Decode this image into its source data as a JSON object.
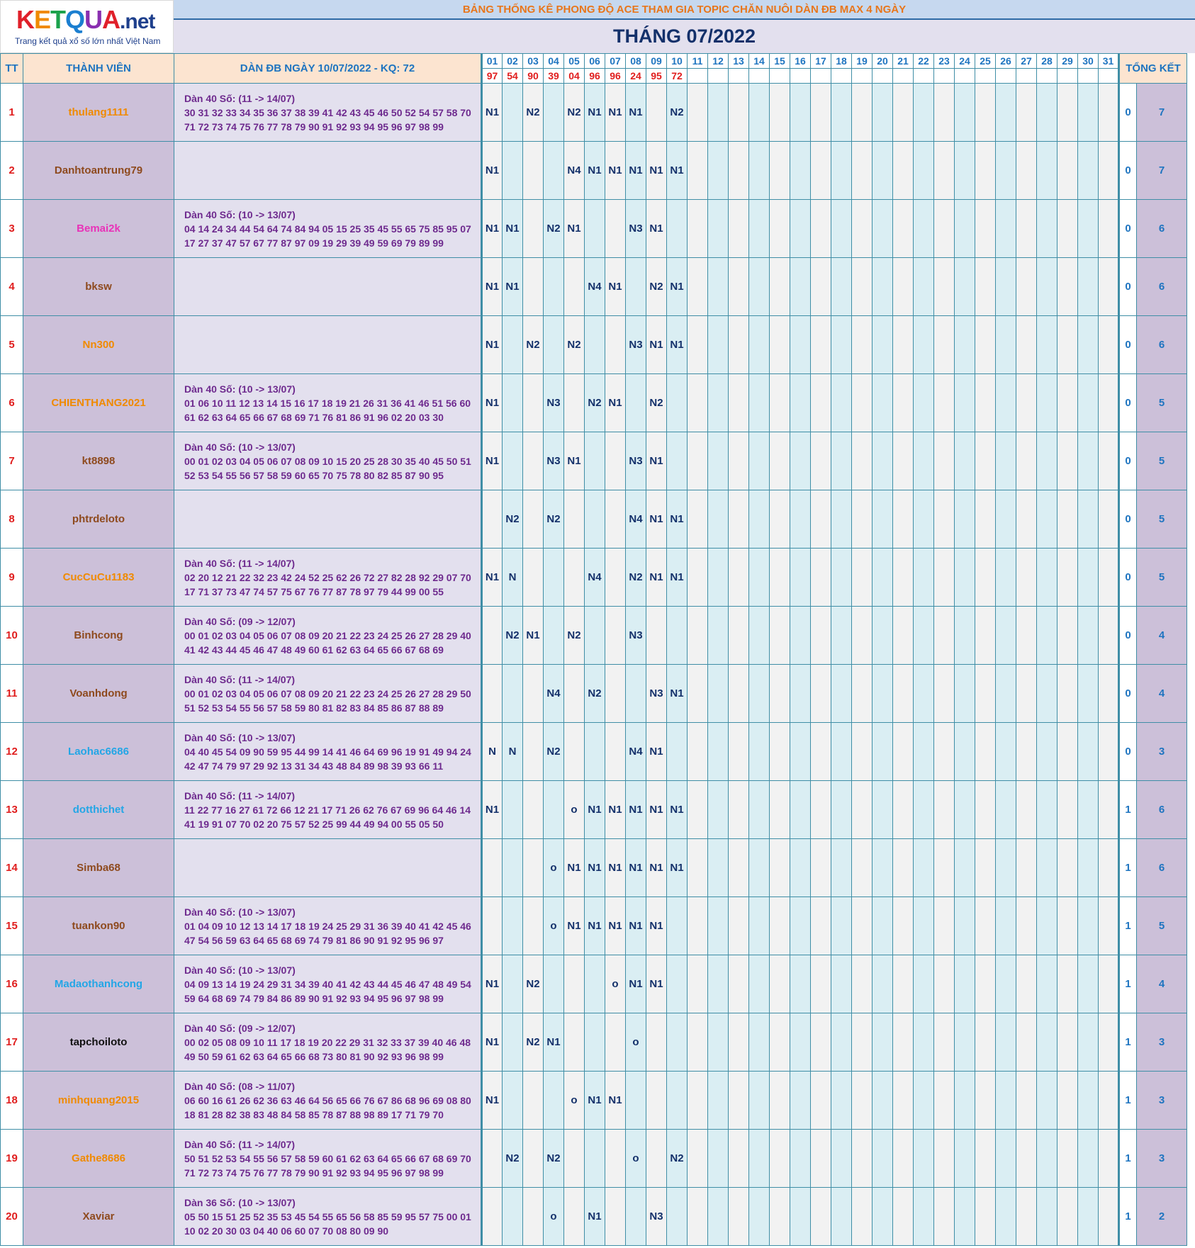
{
  "logo": {
    "brand_parts": [
      "K",
      "E",
      "T",
      "Q",
      "U",
      "A"
    ],
    "domain": ".net",
    "tagline": "Trang kết quả xổ số lớn nhất Việt Nam"
  },
  "banner": "BẢNG THỐNG KÊ PHONG ĐỘ ACE THAM GIA TOPIC CHĂN NUÔI DÀN ĐB MAX 4 NGÀY",
  "month_title": "THÁNG 07/2022",
  "headers": {
    "tt": "TT",
    "member": "THÀNH VIÊN",
    "dan": "DÀN ĐB NGÀY 10/07/2022 - KQ: 72",
    "total": "TỔNG KẾT"
  },
  "days": [
    "01",
    "02",
    "03",
    "04",
    "05",
    "06",
    "07",
    "08",
    "09",
    "10",
    "11",
    "12",
    "13",
    "14",
    "15",
    "16",
    "17",
    "18",
    "19",
    "20",
    "21",
    "22",
    "23",
    "24",
    "25",
    "26",
    "27",
    "28",
    "29",
    "30",
    "31"
  ],
  "results": [
    "97",
    "54",
    "90",
    "39",
    "04",
    "96",
    "96",
    "24",
    "95",
    "72",
    "",
    "",
    "",
    "",
    "",
    "",
    "",
    "",
    "",
    "",
    "",
    "",
    "",
    "",
    "",
    "",
    "",
    "",
    "",
    "",
    ""
  ],
  "colors": {
    "red": "#e01d1d",
    "blue": "#1e74c0",
    "navy": "#13306a",
    "purple": "#6e2a8e",
    "orange": "#f08a00",
    "brown": "#8e4a1e",
    "pink": "#e832b8",
    "cyan": "#23a6e6",
    "black": "#111111"
  },
  "rows": [
    {
      "tt": "1",
      "name": "thulang1111",
      "color": "#f08a00",
      "dan": [
        "Dàn 40 Số: (11 -> 14/07)",
        "30 31 32 33 34 35 36 37 38 39 41 42 43 45 46 50 52 54 57 58 70",
        "71 72 73 74 75 76 77 78 79 90 91 92 93 94 95 96 97 98 99"
      ],
      "marks": [
        "N1",
        "",
        "N2",
        "",
        "N2",
        "N1",
        "N1",
        "N1",
        "",
        "N2"
      ],
      "zero": "0",
      "total": "7"
    },
    {
      "tt": "2",
      "name": "Danhtoantrung79",
      "color": "#8e4a1e",
      "dan": [
        "",
        "",
        ""
      ],
      "marks": [
        "N1",
        "",
        "",
        "",
        "N4",
        "N1",
        "N1",
        "N1",
        "N1",
        "N1"
      ],
      "zero": "0",
      "total": "7"
    },
    {
      "tt": "3",
      "name": "Bemai2k",
      "color": "#e832b8",
      "dan": [
        "Dàn 40 Số: (10 -> 13/07)",
        "04 14 24 34 44 54 64 74 84 94 05 15 25 35 45 55 65 75 85 95 07",
        "17 27 37 47 57 67 77 87 97 09 19 29 39 49 59 69 79 89 99"
      ],
      "marks": [
        "N1",
        "N1",
        "",
        "N2",
        "N1",
        "",
        "",
        "N3",
        "N1",
        ""
      ],
      "zero": "0",
      "total": "6"
    },
    {
      "tt": "4",
      "name": "bksw",
      "color": "#8e4a1e",
      "dan": [
        "",
        "",
        ""
      ],
      "marks": [
        "N1",
        "N1",
        "",
        "",
        "",
        "N4",
        "N1",
        "",
        "N2",
        "N1"
      ],
      "zero": "0",
      "total": "6"
    },
    {
      "tt": "5",
      "name": "Nn300",
      "color": "#f08a00",
      "dan": [
        "",
        "",
        ""
      ],
      "marks": [
        "N1",
        "",
        "N2",
        "",
        "N2",
        "",
        "",
        "N3",
        "N1",
        "N1"
      ],
      "zero": "0",
      "total": "6"
    },
    {
      "tt": "6",
      "name": "CHIENTHANG2021",
      "color": "#f08a00",
      "dan": [
        "Dàn 40 Số: (10 -> 13/07)",
        "01 06 10 11 12 13 14 15 16 17 18 19 21 26 31 36 41 46 51 56 60",
        "61 62 63 64 65 66 67 68 69 71 76 81 86 91 96 02 20 03 30"
      ],
      "marks": [
        "N1",
        "",
        "",
        "N3",
        "",
        "N2",
        "N1",
        "",
        "N2",
        ""
      ],
      "zero": "0",
      "total": "5"
    },
    {
      "tt": "7",
      "name": "kt8898",
      "color": "#8e4a1e",
      "dan": [
        "Dàn 40 Số: (10 -> 13/07)",
        "00 01 02 03 04 05 06 07 08 09 10 15 20 25 28 30 35 40 45 50 51",
        "52 53 54 55 56 57 58 59 60 65 70 75 78 80 82 85 87 90 95"
      ],
      "marks": [
        "N1",
        "",
        "",
        "N3",
        "N1",
        "",
        "",
        "N3",
        "N1",
        ""
      ],
      "zero": "0",
      "total": "5"
    },
    {
      "tt": "8",
      "name": "phtrdeloto",
      "color": "#8e4a1e",
      "dan": [
        "",
        "",
        ""
      ],
      "marks": [
        "",
        "N2",
        "",
        "N2",
        "",
        "",
        "",
        "N4",
        "N1",
        "N1"
      ],
      "zero": "0",
      "total": "5"
    },
    {
      "tt": "9",
      "name": "CucCuCu1183",
      "color": "#f08a00",
      "dan": [
        "Dàn 40 Số: (11 -> 14/07)",
        "02 20 12 21 22 32 23 42 24 52 25 62 26 72 27 82 28 92 29 07 70",
        "17 71 37 73 47 74 57 75 67 76 77 87 78 97 79 44 99 00 55"
      ],
      "marks": [
        "N1",
        "N",
        "",
        "",
        "",
        "N4",
        "",
        "N2",
        "N1",
        "N1"
      ],
      "zero": "0",
      "total": "5"
    },
    {
      "tt": "10",
      "name": "Binhcong",
      "color": "#8e4a1e",
      "dan": [
        "Dàn 40 Số: (09 -> 12/07)",
        "00 01 02 03 04 05 06 07 08 09 20 21 22 23 24 25 26 27 28 29 40",
        "41 42 43 44 45 46 47 48 49 60 61 62 63 64 65 66 67 68 69"
      ],
      "marks": [
        "",
        "N2",
        "N1",
        "",
        "N2",
        "",
        "",
        "N3",
        "",
        ""
      ],
      "zero": "0",
      "total": "4"
    },
    {
      "tt": "11",
      "name": "Voanhdong",
      "color": "#8e4a1e",
      "dan": [
        "Dàn 40 Số: (11 -> 14/07)",
        "00 01 02 03 04 05 06 07 08 09 20 21 22 23 24 25 26 27 28 29 50",
        "51 52 53 54 55 56 57 58 59 80 81 82 83 84 85 86 87 88 89"
      ],
      "marks": [
        "",
        "",
        "",
        "N4",
        "",
        "N2",
        "",
        "",
        "N3",
        "N1"
      ],
      "zero": "0",
      "total": "4"
    },
    {
      "tt": "12",
      "name": "Laohac6686",
      "color": "#23a6e6",
      "dan": [
        "Dàn 40 Số: (10 -> 13/07)",
        "04 40 45 54 09 90 59 95 44 99 14 41 46 64 69 96 19 91 49 94 24",
        "42 47 74 79 97 29 92 13 31 34 43 48 84 89 98 39 93 66 11"
      ],
      "marks": [
        "N",
        "N",
        "",
        "N2",
        "",
        "",
        "",
        "N4",
        "N1",
        ""
      ],
      "zero": "0",
      "total": "3"
    },
    {
      "tt": "13",
      "name": "dotthichet",
      "color": "#23a6e6",
      "dan": [
        "Dàn 40 Số: (11 -> 14/07)",
        "11 22 77 16 27 61 72 66 12 21 17 71 26 62 76 67 69 96 64 46 14",
        "41 19 91 07 70 02 20 75 57 52 25 99 44 49 94 00 55 05 50"
      ],
      "marks": [
        "N1",
        "",
        "",
        "",
        "o",
        "N1",
        "N1",
        "N1",
        "N1",
        "N1"
      ],
      "zero": "1",
      "total": "6"
    },
    {
      "tt": "14",
      "name": "Simba68",
      "color": "#8e4a1e",
      "dan": [
        "",
        "",
        ""
      ],
      "marks": [
        "",
        "",
        "",
        "o",
        "N1",
        "N1",
        "N1",
        "N1",
        "N1",
        "N1"
      ],
      "zero": "1",
      "total": "6"
    },
    {
      "tt": "15",
      "name": "tuankon90",
      "color": "#8e4a1e",
      "dan": [
        "Dàn 40 Số: (10 -> 13/07)",
        "01 04 09 10 12 13 14 17 18 19 24 25 29 31 36 39 40 41 42 45 46",
        "47 54 56 59 63 64 65 68 69 74 79 81 86 90 91 92 95 96 97"
      ],
      "marks": [
        "",
        "",
        "",
        "o",
        "N1",
        "N1",
        "N1",
        "N1",
        "N1",
        ""
      ],
      "zero": "1",
      "total": "5"
    },
    {
      "tt": "16",
      "name": "Madaothanhcong",
      "color": "#23a6e6",
      "dan": [
        "Dàn 40 Số: (10 -> 13/07)",
        "04 09 13 14 19 24 29 31 34 39 40 41 42 43 44 45 46 47 48 49 54",
        "59 64 68 69 74 79 84 86 89 90 91 92 93 94 95 96 97 98 99"
      ],
      "marks": [
        "N1",
        "",
        "N2",
        "",
        "",
        "",
        "o",
        "N1",
        "N1",
        ""
      ],
      "zero": "1",
      "total": "4"
    },
    {
      "tt": "17",
      "name": "tapchoiloto",
      "color": "#111111",
      "dan": [
        "Dàn 40 Số: (09 -> 12/07)",
        "00 02 05 08 09 10 11 17 18 19 20 22 29 31 32 33 37 39 40 46 48",
        "49 50 59 61 62 63 64 65 66 68 73 80 81 90 92 93 96 98 99"
      ],
      "marks": [
        "N1",
        "",
        "N2",
        "N1",
        "",
        "",
        "",
        "o",
        "",
        ""
      ],
      "zero": "1",
      "total": "3"
    },
    {
      "tt": "18",
      "name": "minhquang2015",
      "color": "#f08a00",
      "dan": [
        "Dàn 40 Số: (08 -> 11/07)",
        "06 60 16 61 26 62 36 63 46 64 56 65 66 76 67 86 68 96 69 08 80",
        "18 81 28 82 38 83 48 84 58 85 78 87 88 98 89 17 71 79 70"
      ],
      "marks": [
        "N1",
        "",
        "",
        "",
        "o",
        "N1",
        "N1",
        "",
        "",
        ""
      ],
      "zero": "1",
      "total": "3"
    },
    {
      "tt": "19",
      "name": "Gathe8686",
      "color": "#f08a00",
      "dan": [
        "Dàn 40 Số: (11 -> 14/07)",
        "50 51 52 53 54 55 56 57 58 59 60 61 62 63 64 65 66 67 68 69 70",
        "71 72 73 74 75 76 77 78 79 90 91 92 93 94 95 96 97 98 99"
      ],
      "marks": [
        "",
        "N2",
        "",
        "N2",
        "",
        "",
        "",
        "o",
        "",
        "N2"
      ],
      "zero": "1",
      "total": "3"
    },
    {
      "tt": "20",
      "name": "Xaviar",
      "color": "#8e4a1e",
      "dan": [
        "Dàn 36 Số: (10 -> 13/07)",
        "05 50 15 51 25 52 35 53 45 54 55 65 56 58 85 59 95 57 75 00 01",
        "10 02 20 30 03 04 40 06 60 07 70 08 80 09 90"
      ],
      "marks": [
        "",
        "",
        "",
        "o",
        "",
        "N1",
        "",
        "",
        "N3",
        ""
      ],
      "zero": "1",
      "total": "2"
    }
  ]
}
